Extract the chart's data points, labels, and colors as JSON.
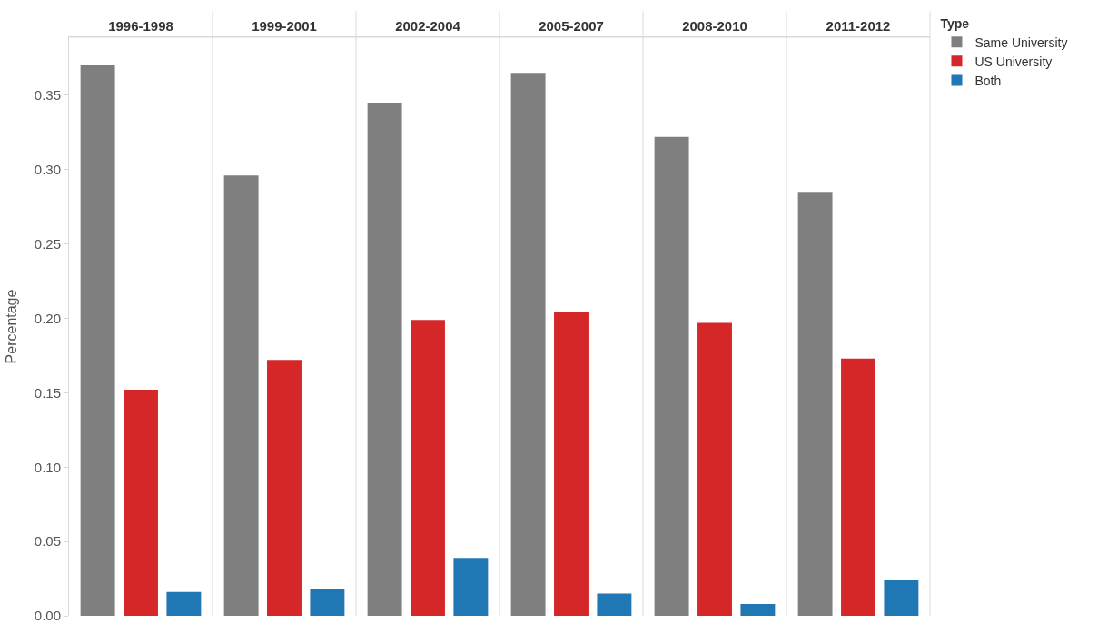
{
  "chart_data": {
    "type": "bar",
    "ylabel": "Percentage",
    "legend_title": "Type",
    "legend": "top right",
    "categories": [
      "1996-1998",
      "1999-2001",
      "2002-2004",
      "2005-2007",
      "2008-2010",
      "2011-2012"
    ],
    "series": [
      {
        "name": "Same University",
        "color": "#7f7f7f",
        "values": [
          0.37,
          0.296,
          0.345,
          0.365,
          0.322,
          0.285
        ]
      },
      {
        "name": "US University",
        "color": "#d62728",
        "values": [
          0.152,
          0.172,
          0.199,
          0.204,
          0.197,
          0.173
        ]
      },
      {
        "name": "Both",
        "color": "#1f77b4",
        "values": [
          0.016,
          0.018,
          0.039,
          0.015,
          0.008,
          0.024
        ]
      }
    ],
    "ylim": [
      0,
      0.389
    ],
    "yticks": [
      {
        "value": 0,
        "label": "0.00"
      },
      {
        "value": 0.05,
        "label": "0.05"
      },
      {
        "value": 0.1,
        "label": "0.10"
      },
      {
        "value": 0.15,
        "label": "0.15"
      },
      {
        "value": 0.2,
        "label": "0.20"
      },
      {
        "value": 0.25,
        "label": "0.25"
      },
      {
        "value": 0.3,
        "label": "0.30"
      },
      {
        "value": 0.35,
        "label": "0.35"
      }
    ]
  }
}
